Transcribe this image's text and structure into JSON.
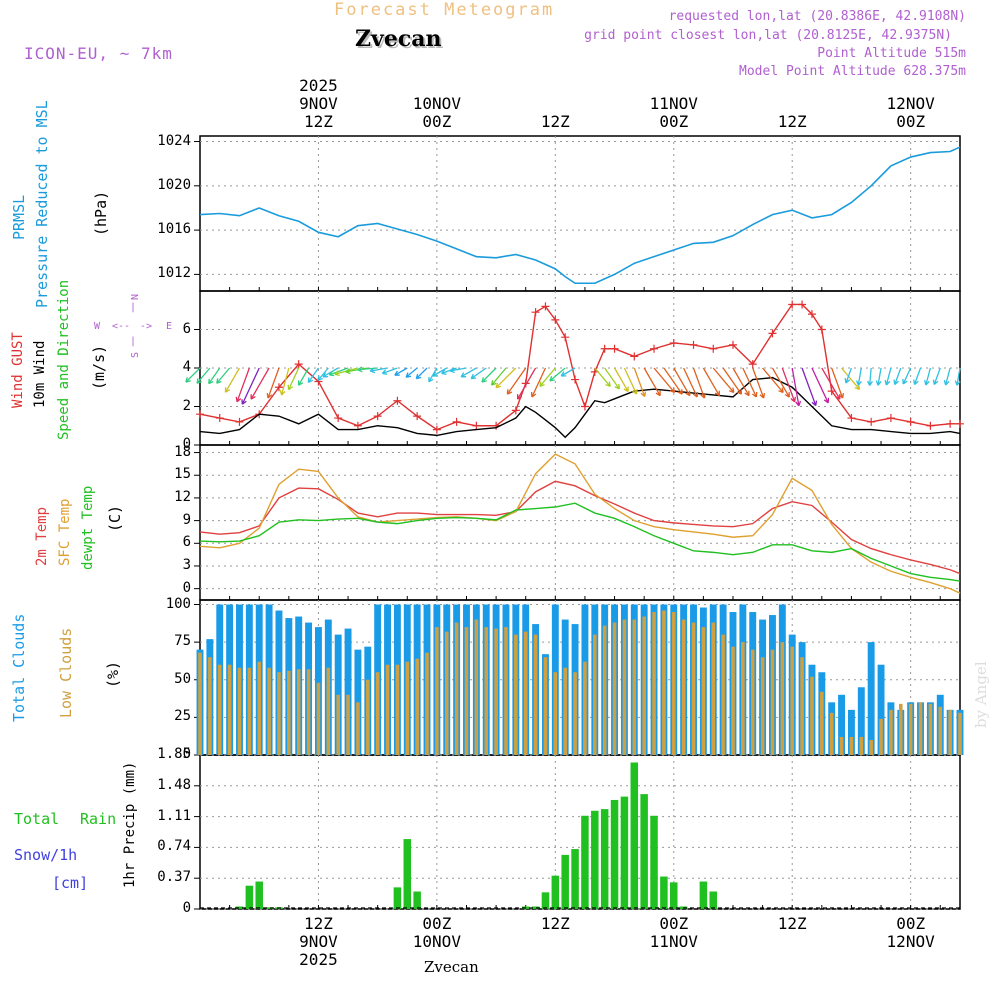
{
  "header": {
    "subtitle": "Forecast Meteogram",
    "location": "Zvecan",
    "model": "ICON-EU, ~ 7km",
    "requested": "requested lon,lat (20.8386E, 42.9108N)",
    "gridpoint": "grid point closest lon,lat (20.8125E, 42.9375N)",
    "point_alt": "Point Altitude 515m",
    "model_alt": "Model Point Altitude 628.375m",
    "footer": "Zvecan",
    "watermark": "by Angel"
  },
  "colors": {
    "pressure": "#1a9bdc",
    "gust": "#e03030",
    "wind": "#000000",
    "t2m": "#e04040",
    "sfc": "#e0a030",
    "dew": "#20c020",
    "total_cloud": "#1a9be8",
    "low_cloud": "#d0a040",
    "rain": "#20c020",
    "snow": "#4040e0",
    "purple": "#b060d0",
    "subtitle": "#f0c080"
  },
  "time_axis": {
    "top_labels": [
      {
        "h": 12,
        "l1": "2025",
        "l2": "9NOV",
        "l3": "12Z"
      },
      {
        "h": 24,
        "l1": "",
        "l2": "10NOV",
        "l3": "00Z"
      },
      {
        "h": 36,
        "l1": "",
        "l2": "",
        "l3": "12Z"
      },
      {
        "h": 48,
        "l1": "",
        "l2": "11NOV",
        "l3": "00Z"
      },
      {
        "h": 60,
        "l1": "",
        "l2": "",
        "l3": "12Z"
      },
      {
        "h": 72,
        "l1": "",
        "l2": "12NOV",
        "l3": "00Z"
      }
    ],
    "bottom_labels": [
      {
        "h": 12,
        "l1": "12Z",
        "l2": "9NOV",
        "l3": "2025"
      },
      {
        "h": 24,
        "l1": "00Z",
        "l2": "10NOV",
        "l3": ""
      },
      {
        "h": 36,
        "l1": "12Z",
        "l2": "",
        "l3": ""
      },
      {
        "h": 48,
        "l1": "00Z",
        "l2": "11NOV",
        "l3": ""
      },
      {
        "h": 60,
        "l1": "12Z",
        "l2": "",
        "l3": ""
      },
      {
        "h": 72,
        "l1": "00Z",
        "l2": "12NOV",
        "l3": ""
      }
    ]
  },
  "panels": {
    "pressure": {
      "l1": "PRMSL",
      "l2": "Pressure Reduced to MSL",
      "unit": "(hPa)",
      "ticks": [
        "1012",
        "1016",
        "1020",
        "1024"
      ]
    },
    "wind": {
      "l1": "Wind GUST",
      "l2": "10m Wind",
      "l3": "Speed and Direction",
      "unit": "(m/s)",
      "ticks": [
        "0",
        "2",
        "4",
        "6"
      ],
      "compass": {
        "n": "N",
        "s": "S",
        "w": "W",
        "e": "E"
      }
    },
    "temp": {
      "l1": "2m Temp",
      "l2": "SFC Temp",
      "l3": "dewpt Temp",
      "unit": "(C)",
      "ticks": [
        "0",
        "3",
        "6",
        "9",
        "12",
        "15",
        "18"
      ]
    },
    "cloud": {
      "l1": "Total Clouds",
      "l2": "Low Clouds",
      "unit": "(%)",
      "ticks": [
        "0",
        "25",
        "50",
        "75",
        "100"
      ]
    },
    "precip": {
      "l1": "Total",
      "l2": "Rain",
      "l3": "Snow/1h",
      "l4": "[cm]",
      "unit": "1hr Precip (mm)",
      "ticks": [
        "0",
        "0.37",
        "0.74",
        "1.11",
        "1.48",
        "1.85"
      ]
    }
  },
  "chart_data": [
    {
      "type": "line",
      "title": "PRMSL Pressure Reduced to MSL",
      "ylabel": "hPa",
      "ylim": [
        1010.5,
        1024.5
      ],
      "x": [
        0,
        2,
        4,
        6,
        8,
        10,
        12,
        14,
        16,
        18,
        20,
        22,
        24,
        26,
        28,
        30,
        32,
        34,
        36,
        37,
        38,
        40,
        42,
        44,
        46,
        48,
        50,
        52,
        54,
        56,
        58,
        60,
        62,
        64,
        66,
        68,
        70,
        72,
        74,
        76,
        77
      ],
      "values": [
        1017.4,
        1017.5,
        1017.3,
        1018.0,
        1017.3,
        1016.8,
        1015.8,
        1015.4,
        1016.4,
        1016.6,
        1016.1,
        1015.6,
        1015.0,
        1014.3,
        1013.6,
        1013.5,
        1013.8,
        1013.3,
        1012.5,
        1011.8,
        1011.2,
        1011.2,
        1012.0,
        1013.0,
        1013.6,
        1014.2,
        1014.8,
        1014.9,
        1015.5,
        1016.5,
        1017.4,
        1017.8,
        1017.1,
        1017.4,
        1018.5,
        1020.0,
        1021.8,
        1022.6,
        1023.0,
        1023.1,
        1023.5
      ]
    },
    {
      "type": "line",
      "title": "Wind GUST / 10m Wind Speed and Direction",
      "ylabel": "m/s",
      "ylim": [
        0,
        8
      ],
      "x": [
        0,
        2,
        4,
        6,
        8,
        10,
        12,
        14,
        16,
        18,
        20,
        22,
        24,
        26,
        28,
        30,
        32,
        33,
        34,
        35,
        36,
        37,
        38,
        39,
        40,
        41,
        42,
        44,
        46,
        48,
        50,
        52,
        54,
        56,
        58,
        60,
        61,
        62,
        63,
        64,
        66,
        68,
        70,
        72,
        74,
        76,
        77
      ],
      "series": [
        {
          "name": "Wind GUST",
          "values": [
            1.6,
            1.4,
            1.2,
            1.6,
            3.0,
            4.2,
            3.3,
            1.4,
            1.0,
            1.5,
            2.3,
            1.5,
            0.8,
            1.2,
            1.0,
            1.0,
            1.8,
            3.2,
            6.9,
            7.2,
            6.5,
            5.6,
            3.4,
            2.0,
            3.8,
            5.0,
            5.0,
            4.6,
            5.0,
            5.3,
            5.2,
            5.0,
            5.2,
            4.2,
            5.8,
            7.3,
            7.3,
            6.8,
            6.0,
            2.8,
            1.4,
            1.2,
            1.4,
            1.2,
            1.0,
            1.1,
            1.1
          ]
        },
        {
          "name": "10m Wind",
          "values": [
            0.7,
            0.6,
            0.8,
            1.6,
            1.5,
            1.1,
            1.6,
            0.8,
            0.8,
            1.0,
            0.9,
            0.6,
            0.5,
            0.7,
            0.8,
            0.9,
            1.4,
            2.0,
            1.7,
            1.3,
            0.9,
            0.4,
            0.9,
            1.6,
            2.3,
            2.2,
            2.4,
            2.8,
            2.9,
            2.8,
            2.7,
            2.6,
            2.5,
            3.4,
            3.5,
            3.0,
            2.5,
            2.0,
            1.5,
            1.0,
            0.8,
            0.8,
            0.7,
            0.6,
            0.6,
            0.7,
            0.6
          ]
        }
      ],
      "arrows": {
        "x": [
          0,
          1,
          2,
          3,
          4,
          5,
          6,
          7,
          8,
          9,
          10,
          11,
          12,
          13,
          14,
          15,
          16,
          17,
          18,
          19,
          20,
          21,
          22,
          23,
          24,
          25,
          26,
          27,
          28,
          29,
          30,
          31,
          32,
          33,
          34,
          35,
          36,
          37,
          38,
          40,
          41,
          42,
          43,
          44,
          45,
          46,
          47,
          48,
          49,
          50,
          51,
          52,
          53,
          54,
          55,
          56,
          57,
          58,
          59,
          60,
          61,
          62,
          63,
          64,
          65,
          66,
          67,
          68,
          69,
          70,
          71,
          72,
          73,
          74,
          75,
          76,
          77
        ],
        "direction_deg": [
          45,
          40,
          35,
          40,
          30,
          20,
          25,
          30,
          20,
          15,
          25,
          30,
          35,
          40,
          60,
          70,
          75,
          80,
          85,
          80,
          70,
          60,
          50,
          45,
          30,
          60,
          70,
          80,
          60,
          55,
          45,
          40,
          45,
          35,
          30,
          25,
          40,
          50,
          60,
          320,
          325,
          330,
          335,
          340,
          330,
          320,
          325,
          330,
          335,
          340,
          330,
          320,
          325,
          330,
          335,
          340,
          320,
          330,
          340,
          350,
          340,
          335,
          330,
          340,
          320,
          20,
          10,
          5,
          10,
          15,
          20,
          25,
          20,
          15,
          20,
          15,
          10
        ],
        "speed": [
          1.5,
          1.5,
          1.4,
          1.5,
          2.5,
          3.5,
          4.0,
          3.5,
          3.0,
          2.5,
          2.0,
          1.5,
          1.2,
          1.0,
          1.2,
          1.5,
          2.0,
          1.8,
          1.5,
          1.2,
          1.0,
          0.8,
          0.8,
          0.9,
          1.0,
          1.0,
          1.0,
          1.1,
          1.2,
          1.3,
          1.5,
          1.8,
          2.5,
          3.0,
          3.5,
          3.0,
          2.0,
          1.5,
          1.0,
          2.0,
          2.2,
          2.4,
          2.6,
          2.8,
          3.0,
          3.0,
          3.0,
          3.0,
          3.0,
          3.0,
          3.0,
          3.0,
          3.0,
          3.0,
          3.0,
          3.0,
          3.0,
          3.2,
          3.5,
          3.8,
          4.0,
          3.8,
          3.5,
          3.0,
          2.5,
          1.0,
          1.2,
          1.2,
          1.2,
          1.2,
          1.2,
          1.2,
          1.2,
          1.2,
          1.2,
          1.2,
          1.2
        ]
      }
    },
    {
      "type": "line",
      "title": "2m Temp / SFC Temp / dewpt Temp",
      "ylabel": "C",
      "ylim": [
        -1.5,
        19
      ],
      "x": [
        0,
        2,
        4,
        6,
        8,
        10,
        12,
        14,
        16,
        18,
        20,
        22,
        24,
        26,
        28,
        30,
        32,
        34,
        36,
        38,
        40,
        42,
        44,
        46,
        48,
        50,
        52,
        54,
        56,
        58,
        60,
        62,
        64,
        66,
        68,
        70,
        72,
        74,
        76,
        77
      ],
      "series": [
        {
          "name": "2m Temp",
          "values": [
            7.5,
            7.2,
            7.4,
            8.3,
            12.0,
            13.3,
            13.2,
            11.8,
            10.0,
            9.5,
            10.0,
            10.0,
            9.8,
            9.8,
            9.8,
            9.7,
            10.2,
            12.8,
            14.2,
            13.6,
            12.3,
            11.2,
            10.0,
            9.0,
            8.7,
            8.5,
            8.3,
            8.2,
            8.6,
            10.6,
            11.5,
            11.0,
            8.8,
            6.5,
            5.3,
            4.5,
            3.8,
            3.2,
            2.5,
            2.0
          ]
        },
        {
          "name": "SFC Temp",
          "values": [
            5.6,
            5.4,
            6.0,
            8.0,
            13.8,
            15.8,
            15.5,
            12.0,
            9.5,
            8.8,
            9.0,
            9.2,
            9.4,
            9.5,
            9.3,
            9.0,
            10.2,
            15.2,
            17.8,
            16.5,
            12.5,
            10.6,
            9.0,
            8.2,
            7.8,
            7.5,
            7.2,
            6.8,
            7.0,
            9.8,
            14.6,
            13.0,
            8.5,
            5.3,
            3.5,
            2.3,
            1.5,
            0.8,
            0.0,
            -0.6
          ]
        },
        {
          "name": "dewpt Temp",
          "values": [
            6.3,
            6.2,
            6.3,
            7.0,
            8.8,
            9.1,
            9.0,
            9.2,
            9.3,
            8.8,
            8.6,
            9.0,
            9.3,
            9.4,
            9.3,
            9.1,
            10.4,
            10.6,
            10.8,
            11.3,
            10.0,
            9.3,
            8.2,
            7.0,
            6.0,
            5.0,
            4.8,
            4.5,
            4.8,
            5.8,
            5.8,
            5.0,
            4.8,
            5.3,
            4.0,
            3.0,
            2.0,
            1.5,
            1.2,
            1.0
          ]
        }
      ]
    },
    {
      "type": "bar",
      "title": "Total Clouds / Low Clouds",
      "ylabel": "%",
      "ylim": [
        0,
        100
      ],
      "x": [
        0,
        1,
        2,
        3,
        4,
        5,
        6,
        7,
        8,
        9,
        10,
        11,
        12,
        13,
        14,
        15,
        16,
        17,
        18,
        19,
        20,
        21,
        22,
        23,
        24,
        25,
        26,
        27,
        28,
        29,
        30,
        31,
        32,
        33,
        34,
        35,
        36,
        37,
        38,
        39,
        40,
        41,
        42,
        43,
        44,
        45,
        46,
        47,
        48,
        49,
        50,
        51,
        52,
        53,
        54,
        55,
        56,
        57,
        58,
        59,
        60,
        61,
        62,
        63,
        64,
        65,
        66,
        67,
        68,
        69,
        70,
        71,
        72,
        73,
        74,
        75,
        76,
        77
      ],
      "series": [
        {
          "name": "Total Clouds",
          "values": [
            70,
            77,
            100,
            100,
            100,
            100,
            100,
            100,
            96,
            91,
            92,
            88,
            85,
            90,
            80,
            84,
            70,
            72,
            100,
            100,
            100,
            100,
            100,
            100,
            100,
            100,
            100,
            100,
            100,
            100,
            100,
            100,
            100,
            100,
            87,
            67,
            100,
            90,
            87,
            100,
            100,
            100,
            100,
            100,
            100,
            100,
            100,
            100,
            100,
            100,
            100,
            98,
            100,
            100,
            95,
            100,
            95,
            90,
            93,
            100,
            80,
            75,
            60,
            55,
            35,
            40,
            30,
            45,
            75,
            60,
            35,
            30,
            35,
            35,
            35,
            40,
            30,
            30
          ]
        },
        {
          "name": "Low Clouds",
          "values": [
            68,
            65,
            60,
            60,
            58,
            58,
            62,
            58,
            55,
            56,
            57,
            57,
            48,
            58,
            40,
            40,
            35,
            50,
            55,
            60,
            60,
            62,
            64,
            68,
            85,
            82,
            88,
            85,
            90,
            85,
            84,
            85,
            80,
            82,
            80,
            65,
            55,
            58,
            55,
            62,
            80,
            86,
            88,
            90,
            90,
            92,
            95,
            96,
            95,
            90,
            88,
            85,
            88,
            80,
            72,
            75,
            70,
            65,
            70,
            75,
            72,
            65,
            52,
            42,
            28,
            12,
            12,
            12,
            10,
            24,
            30,
            34,
            34,
            35,
            34,
            32,
            30,
            28
          ]
        }
      ]
    },
    {
      "type": "bar",
      "title": "1hr Precip",
      "ylabel": "1hr Precip (mm)",
      "ylim": [
        0,
        1.85
      ],
      "x": [
        4,
        5,
        6,
        7,
        8,
        20,
        21,
        22,
        33,
        34,
        35,
        36,
        37,
        38,
        39,
        40,
        41,
        42,
        43,
        44,
        45,
        46,
        47,
        48,
        49,
        51,
        52
      ],
      "series": [
        {
          "name": "Total Rain",
          "values": [
            0.03,
            0.28,
            0.33,
            0.02,
            0.02,
            0.26,
            0.84,
            0.21,
            0.03,
            0.03,
            0.2,
            0.4,
            0.65,
            0.72,
            1.12,
            1.18,
            1.2,
            1.31,
            1.35,
            1.76,
            1.38,
            1.12,
            0.39,
            0.32,
            0.03,
            0.33,
            0.21
          ]
        }
      ]
    }
  ]
}
